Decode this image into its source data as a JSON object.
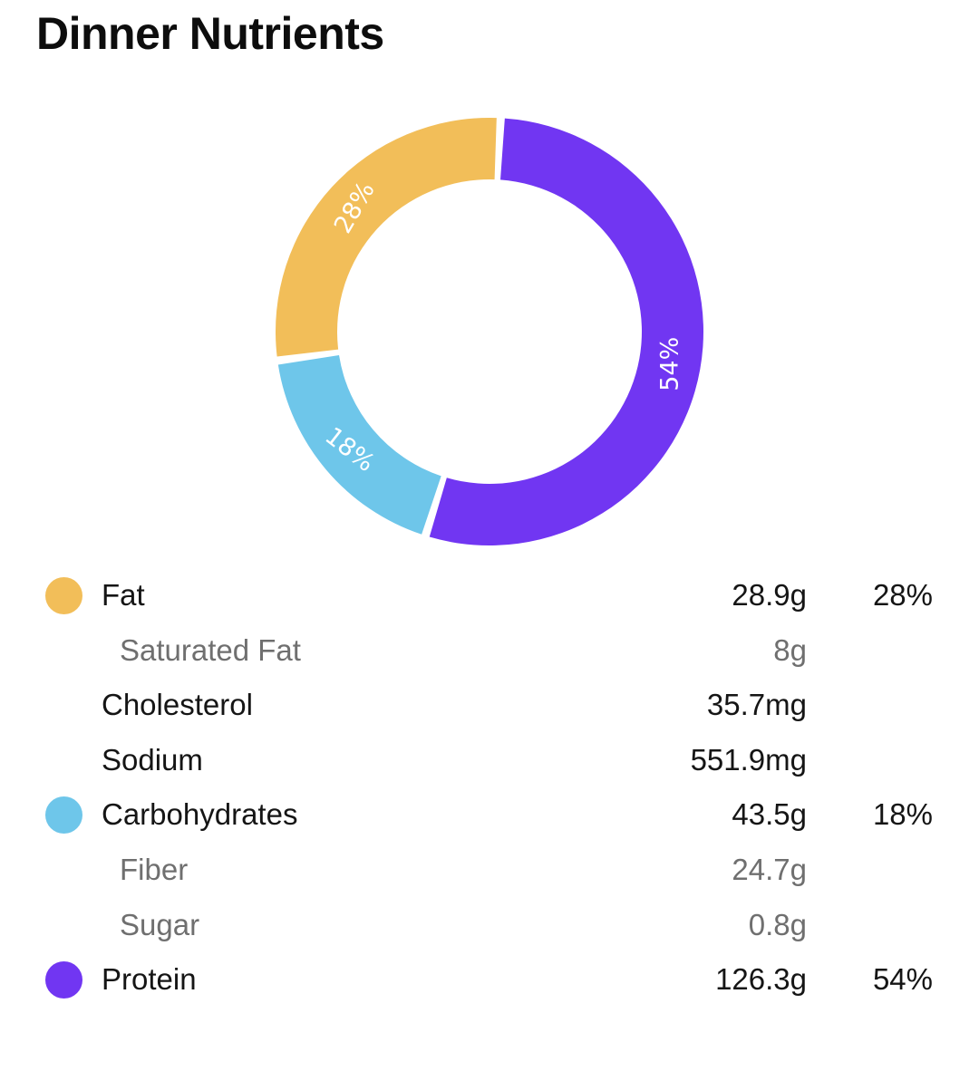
{
  "title": "Dinner Nutrients",
  "colors": {
    "fat": "#F2BE59",
    "carbohydrates": "#6EC6EA",
    "protein": "#7136F2",
    "gap": "#ffffff"
  },
  "chart_data": {
    "type": "pie",
    "categories": [
      "Protein",
      "Carbohydrates",
      "Fat"
    ],
    "values": [
      54,
      18,
      28
    ],
    "labels": [
      "54%",
      "18%",
      "28%"
    ],
    "colors": [
      "#7136F2",
      "#6EC6EA",
      "#F2BE59"
    ],
    "donut": true,
    "title": "",
    "legend": "table below chart"
  },
  "nutrients": [
    {
      "name": "Fat",
      "amount": "28.9g",
      "percent": "28%",
      "level": "main",
      "icon": "fat-dot-icon",
      "color": "#F2BE59"
    },
    {
      "name": "Saturated Fat",
      "amount": "8g",
      "percent": "",
      "level": "sub"
    },
    {
      "name": "Cholesterol",
      "amount": "35.7mg",
      "percent": "",
      "level": "main"
    },
    {
      "name": "Sodium",
      "amount": "551.9mg",
      "percent": "",
      "level": "main"
    },
    {
      "name": "Carbohydrates",
      "amount": "43.5g",
      "percent": "18%",
      "level": "main",
      "icon": "carbohydrates-dot-icon",
      "color": "#6EC6EA"
    },
    {
      "name": "Fiber",
      "amount": "24.7g",
      "percent": "",
      "level": "sub"
    },
    {
      "name": "Sugar",
      "amount": "0.8g",
      "percent": "",
      "level": "sub"
    },
    {
      "name": "Protein",
      "amount": "126.3g",
      "percent": "54%",
      "level": "main",
      "icon": "protein-dot-icon",
      "color": "#7136F2"
    }
  ]
}
